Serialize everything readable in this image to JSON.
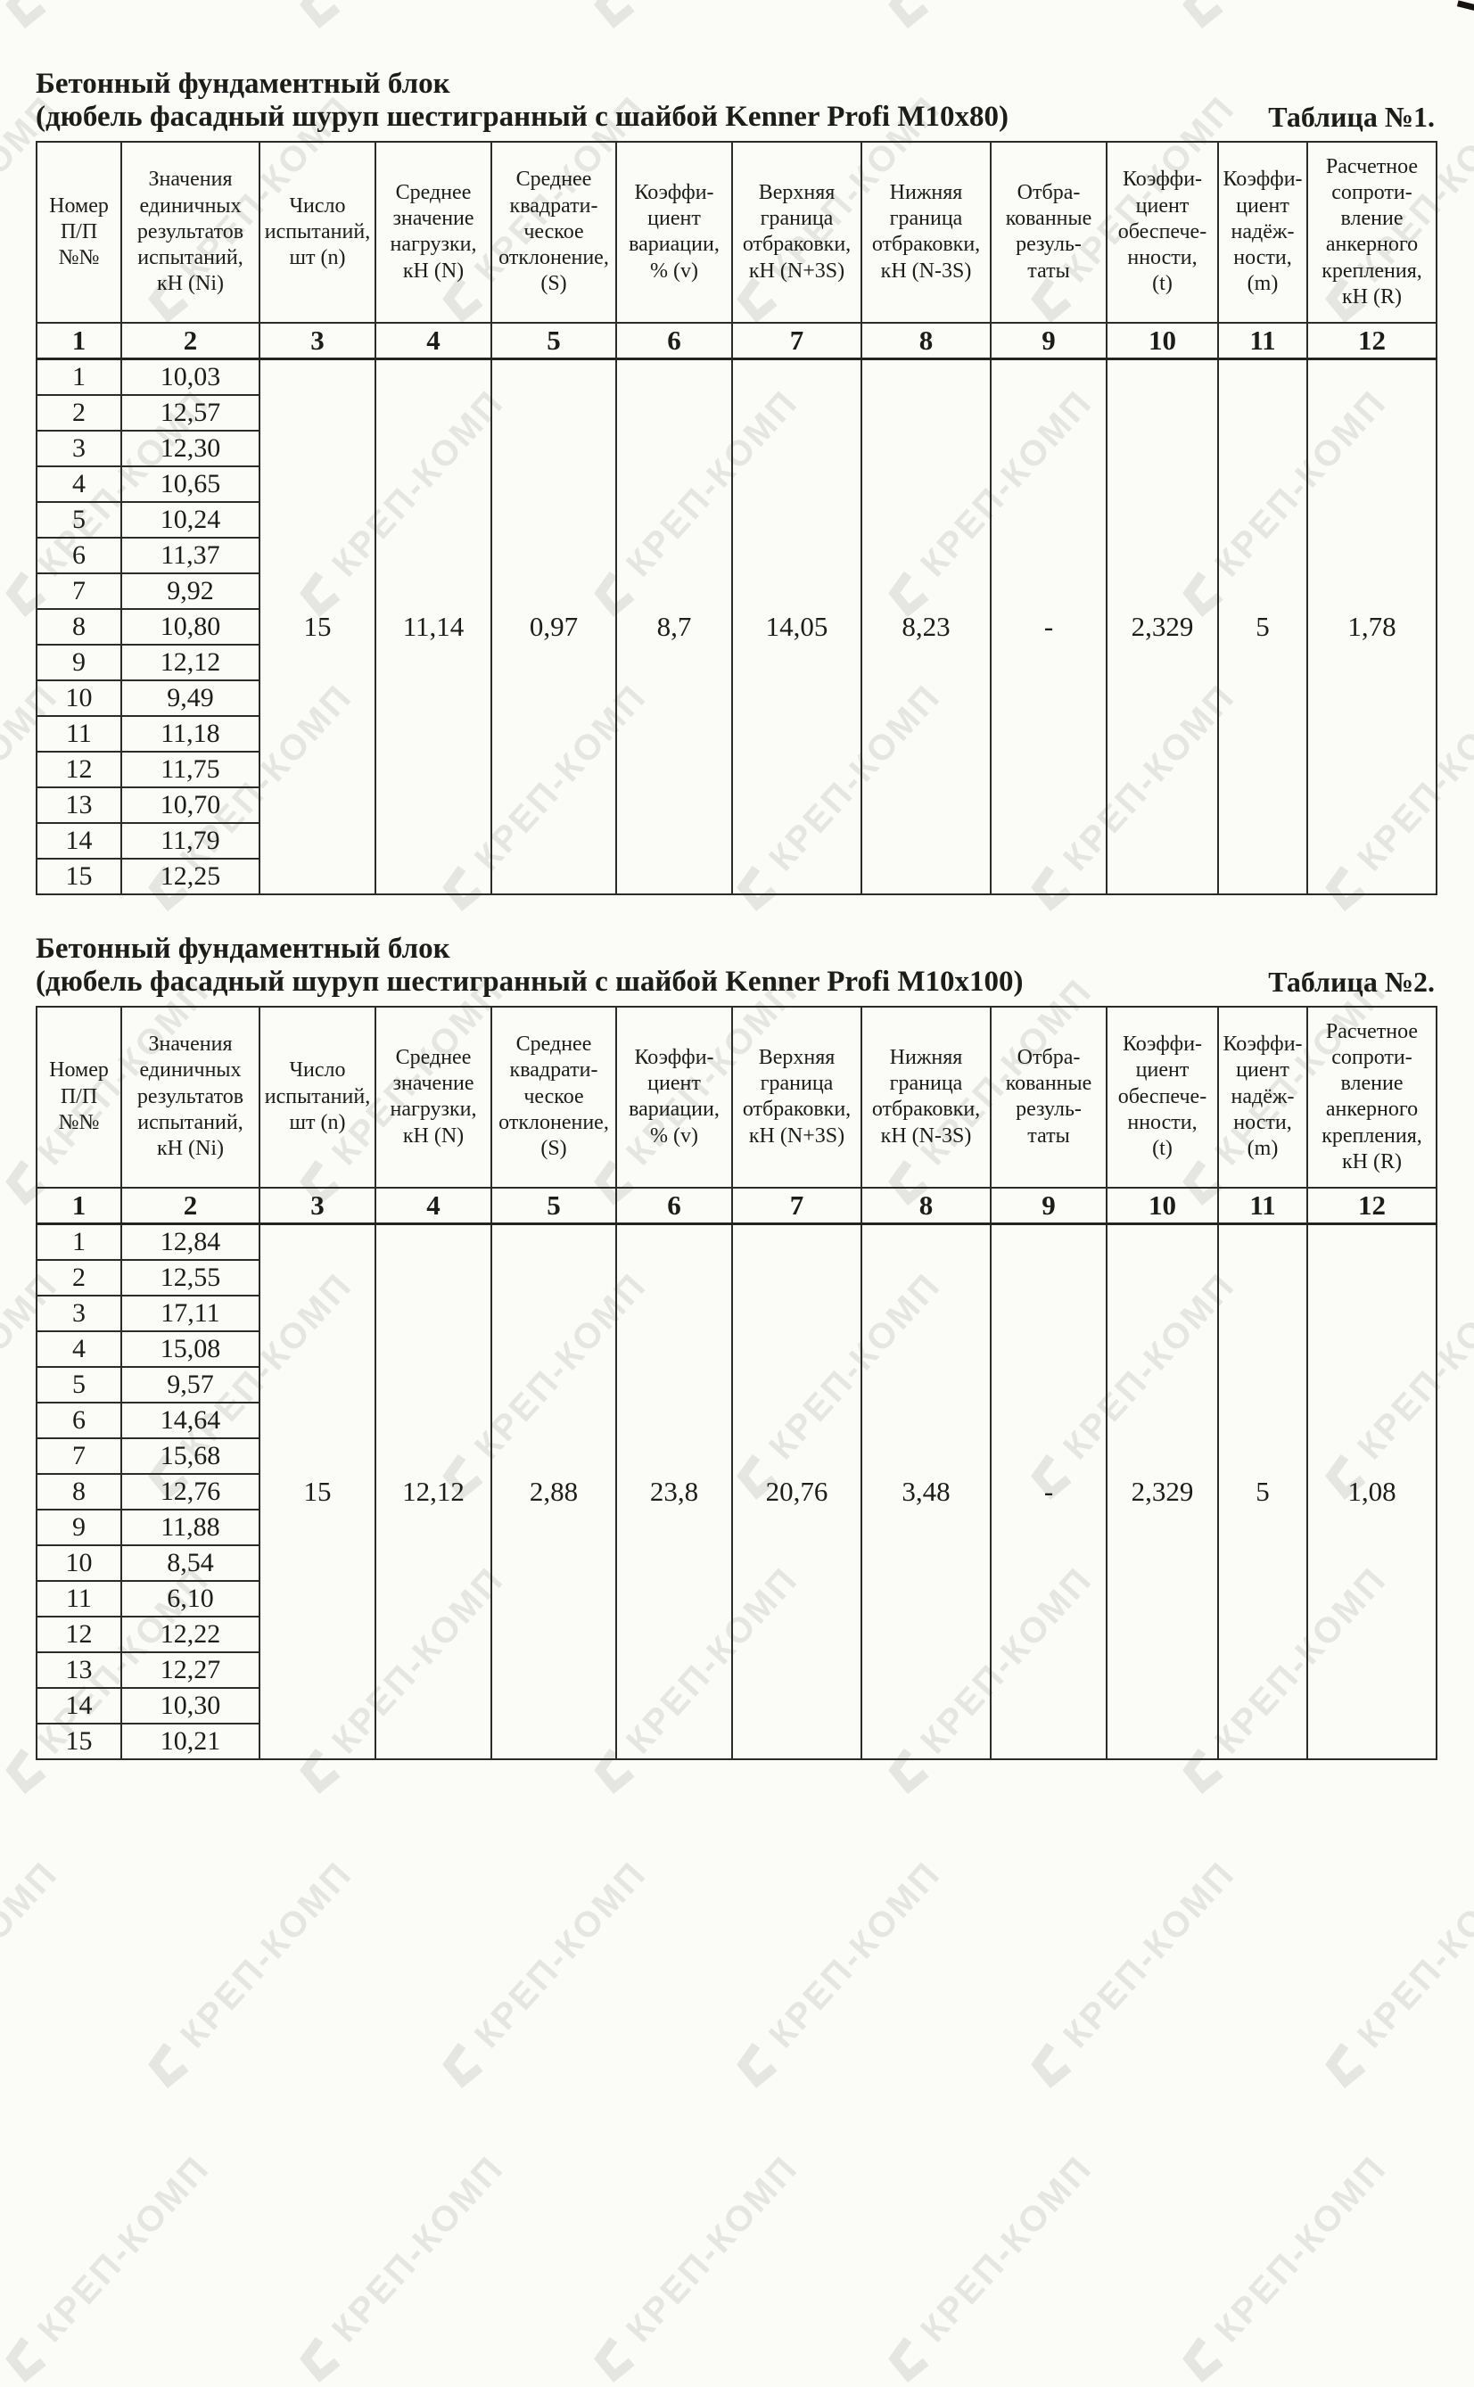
{
  "watermark": {
    "text": "КРЕП-КОМП"
  },
  "columns": [
    "Номер\nП/П\n№№",
    "Значения\nединичных\nрезультатов\nиспытаний,\nкН (Ni)",
    "Число\nиспытаний,\nшт (n)",
    "Среднее\nзначение\nнагрузки,\nкН (N)",
    "Среднее\nквадрати-\nческое\nотклонение,\n(S)",
    "Коэффи-\nциент\nвариации,\n% (v)",
    "Верхняя\nграница\nотбраковки,\nкН (N+3S)",
    "Нижняя\nграница\nотбраковки,\nкН (N-3S)",
    "Отбра-\nкованные\nрезуль-\nтаты",
    "Коэффи-\nциент\nобеспече-\nнности,\n(t)",
    "Коэффи-\nциент\nнадёж-\nности,\n(m)",
    "Расчетное\nсопроти-\nвление\nанкерного\nкрепления,\nкН (R)"
  ],
  "column_numbers": [
    "1",
    "2",
    "3",
    "4",
    "5",
    "6",
    "7",
    "8",
    "9",
    "10",
    "11",
    "12"
  ],
  "summary_order": [
    "tests_count",
    "mean_load",
    "std_dev",
    "variation",
    "upper_limit",
    "lower_limit",
    "rejected",
    "assurance_coefficient",
    "reliability_coefficient",
    "design_resistance"
  ],
  "tables": [
    {
      "title_line1": "Бетонный фундаментный блок",
      "title_line2": "(дюбель фасадный шуруп шестигранный с шайбой Kenner Profi M10x80)",
      "table_label": "Таблица №1.",
      "row_numbers": [
        "1",
        "2",
        "3",
        "4",
        "5",
        "6",
        "7",
        "8",
        "9",
        "10",
        "11",
        "12",
        "13",
        "14",
        "15"
      ],
      "values": [
        "10,03",
        "12,57",
        "12,30",
        "10,65",
        "10,24",
        "11,37",
        "9,92",
        "10,80",
        "12,12",
        "9,49",
        "11,18",
        "11,75",
        "10,70",
        "11,79",
        "12,25"
      ],
      "summary": {
        "tests_count": "15",
        "mean_load": "11,14",
        "std_dev": "0,97",
        "variation": "8,7",
        "upper_limit": "14,05",
        "lower_limit": "8,23",
        "rejected": "-",
        "assurance_coefficient": "2,329",
        "reliability_coefficient": "5",
        "design_resistance": "1,78"
      }
    },
    {
      "title_line1": "Бетонный фундаментный блок",
      "title_line2": "(дюбель фасадный шуруп шестигранный с шайбой Kenner Profi M10x100)",
      "table_label": "Таблица №2.",
      "row_numbers": [
        "1",
        "2",
        "3",
        "4",
        "5",
        "6",
        "7",
        "8",
        "9",
        "10",
        "11",
        "12",
        "13",
        "14",
        "15"
      ],
      "values": [
        "12,84",
        "12,55",
        "17,11",
        "15,08",
        "9,57",
        "14,64",
        "15,68",
        "12,76",
        "11,88",
        "8,54",
        "6,10",
        "12,22",
        "12,27",
        "10,30",
        "10,21"
      ],
      "summary": {
        "tests_count": "15",
        "mean_load": "12,12",
        "std_dev": "2,88",
        "variation": "23,8",
        "upper_limit": "20,76",
        "lower_limit": "3,48",
        "rejected": "-",
        "assurance_coefficient": "2,329",
        "reliability_coefficient": "5",
        "design_resistance": "1,08"
      }
    }
  ]
}
